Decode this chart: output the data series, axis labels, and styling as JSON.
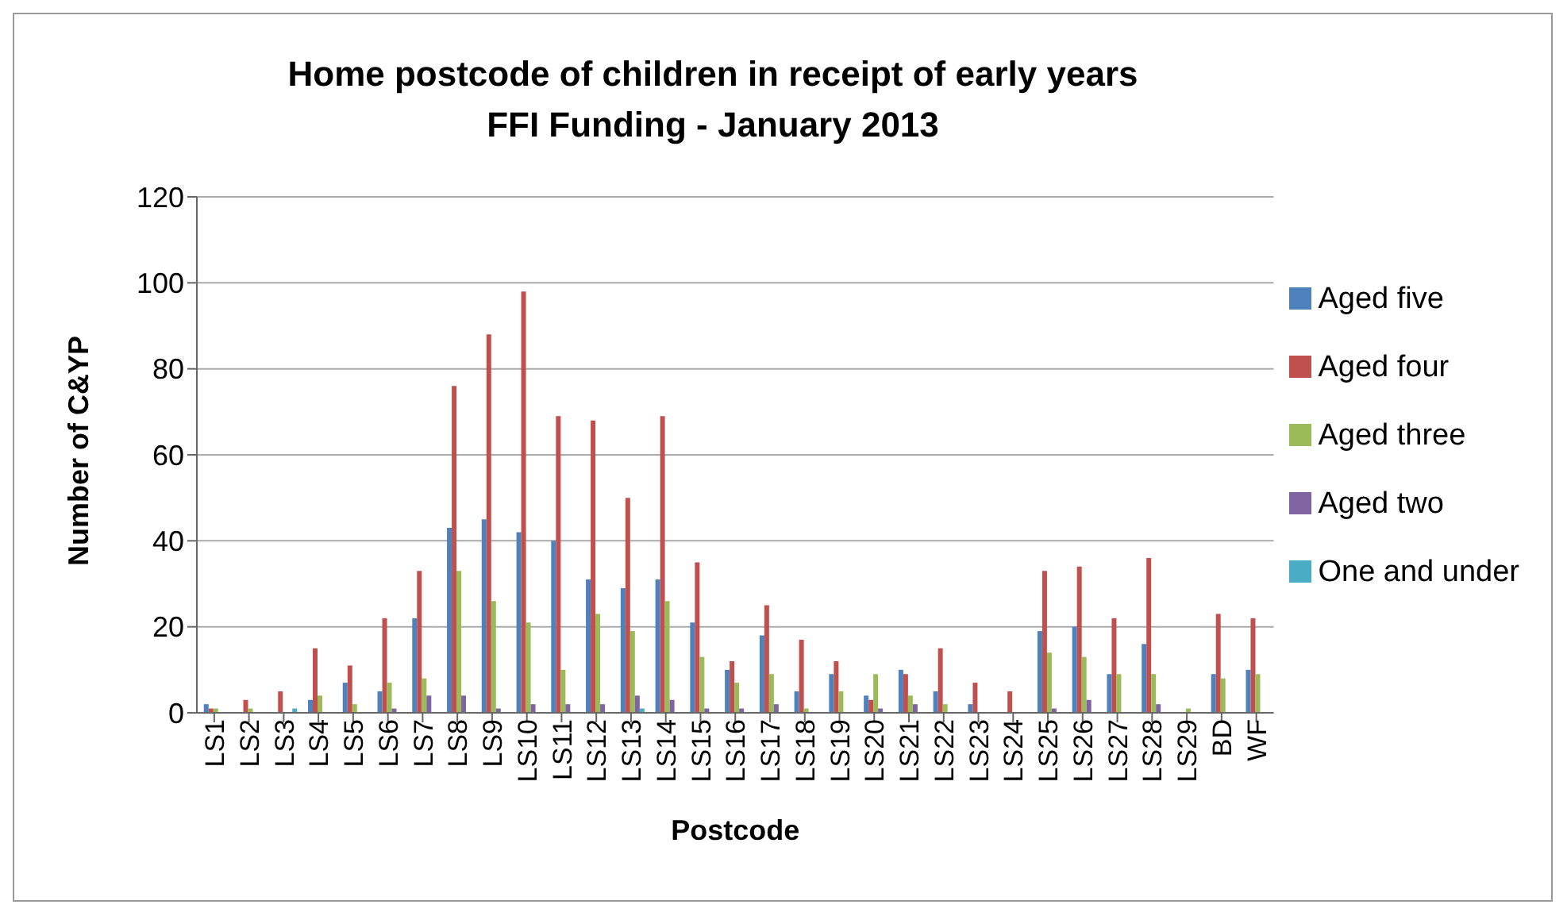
{
  "chart_data": {
    "type": "bar",
    "title": "Home postcode of children in receipt of early years FFI Funding  -  January 2013",
    "xlabel": "Postcode",
    "ylabel": "Number of C&YP",
    "categories": [
      "LS1",
      "LS2",
      "LS3",
      "LS4",
      "LS5",
      "LS6",
      "LS7",
      "LS8",
      "LS9",
      "LS10",
      "LS11",
      "LS12",
      "LS13",
      "LS14",
      "LS15",
      "LS16",
      "LS17",
      "LS18",
      "LS19",
      "LS20",
      "LS21",
      "LS22",
      "LS23",
      "LS24",
      "LS25",
      "LS26",
      "LS27",
      "LS28",
      "LS29",
      "BD",
      "WF"
    ],
    "series": [
      {
        "name": "Aged five",
        "color": "#4f81bd",
        "values": [
          2,
          0,
          0,
          3,
          7,
          5,
          22,
          43,
          45,
          42,
          40,
          31,
          29,
          31,
          21,
          10,
          18,
          5,
          9,
          4,
          10,
          5,
          2,
          0,
          19,
          20,
          9,
          16,
          0,
          9,
          10
        ]
      },
      {
        "name": "Aged four",
        "color": "#c0504d",
        "values": [
          1,
          3,
          5,
          15,
          11,
          22,
          33,
          76,
          88,
          98,
          69,
          68,
          50,
          69,
          35,
          12,
          25,
          17,
          12,
          3,
          9,
          15,
          7,
          5,
          33,
          34,
          22,
          36,
          0,
          23,
          22
        ]
      },
      {
        "name": "Aged three",
        "color": "#9bbb59",
        "values": [
          1,
          1,
          0,
          4,
          2,
          7,
          8,
          33,
          26,
          21,
          10,
          23,
          19,
          26,
          13,
          7,
          9,
          1,
          5,
          9,
          4,
          2,
          0,
          0,
          14,
          13,
          9,
          9,
          1,
          8,
          9
        ]
      },
      {
        "name": "Aged two",
        "color": "#8064a2",
        "values": [
          0,
          0,
          0,
          0,
          0,
          1,
          4,
          4,
          1,
          2,
          2,
          2,
          4,
          3,
          1,
          1,
          2,
          0,
          0,
          1,
          2,
          0,
          0,
          0,
          1,
          3,
          0,
          2,
          0,
          0,
          0
        ]
      },
      {
        "name": "One and under",
        "color": "#4bacc6",
        "values": [
          0,
          0,
          1,
          0,
          0,
          0,
          0,
          0,
          0,
          0,
          0,
          0,
          1,
          0,
          0,
          0,
          0,
          0,
          0,
          0,
          0,
          0,
          0,
          0,
          0,
          0,
          0,
          0,
          0,
          0,
          0
        ]
      }
    ],
    "ylim": [
      0,
      120
    ],
    "yticks": [
      0,
      20,
      40,
      60,
      80,
      100,
      120
    ],
    "grid": "y",
    "legend": "right"
  }
}
